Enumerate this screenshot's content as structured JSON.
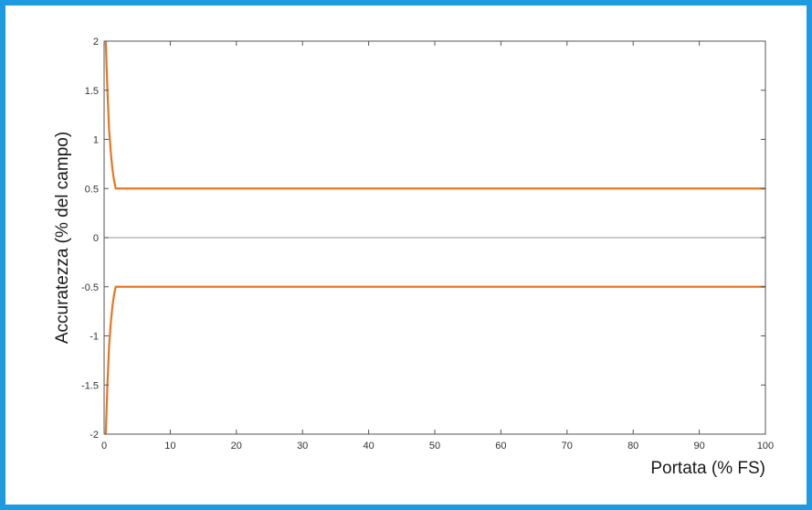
{
  "chart_data": {
    "type": "line",
    "title": "",
    "xlabel": "Portata (% FS)",
    "ylabel": "Accuratezza (% del campo)",
    "xlim": [
      0,
      100
    ],
    "ylim": [
      -2,
      2
    ],
    "xticks": [
      "0",
      "10",
      "20",
      "30",
      "40",
      "50",
      "60",
      "70",
      "80",
      "90",
      "100"
    ],
    "yticks": [
      "2",
      "1.5",
      "1",
      "0.5",
      "0",
      "-0.5",
      "-1",
      "-1.5",
      "-2"
    ],
    "grid": false,
    "zero_line": true,
    "colors": {
      "series": "#e8761f",
      "frame": "#1e9be0",
      "axis": "#555555",
      "zero_line": "#aaaaaa"
    },
    "series": [
      {
        "x": [
          0.25,
          0.5,
          0.75,
          1,
          1.25,
          1.5,
          1.75,
          2,
          3,
          5,
          10,
          20,
          30,
          40,
          50,
          60,
          70,
          80,
          90,
          100
        ],
        "y": [
          2,
          1.5,
          1.1,
          0.875,
          0.7,
          0.583,
          0.5,
          0.5,
          0.5,
          0.5,
          0.5,
          0.5,
          0.5,
          0.5,
          0.5,
          0.5,
          0.5,
          0.5,
          0.5,
          0.5
        ]
      },
      {
        "x": [
          0.25,
          0.5,
          0.75,
          1,
          1.25,
          1.5,
          1.75,
          2,
          3,
          5,
          10,
          20,
          30,
          40,
          50,
          60,
          70,
          80,
          90,
          100
        ],
        "y": [
          -2,
          -1.5,
          -1.1,
          -0.875,
          -0.7,
          -0.583,
          -0.5,
          -0.5,
          -0.5,
          -0.5,
          -0.5,
          -0.5,
          -0.5,
          -0.5,
          -0.5,
          -0.5,
          -0.5,
          -0.5,
          -0.5,
          -0.5
        ]
      }
    ]
  }
}
